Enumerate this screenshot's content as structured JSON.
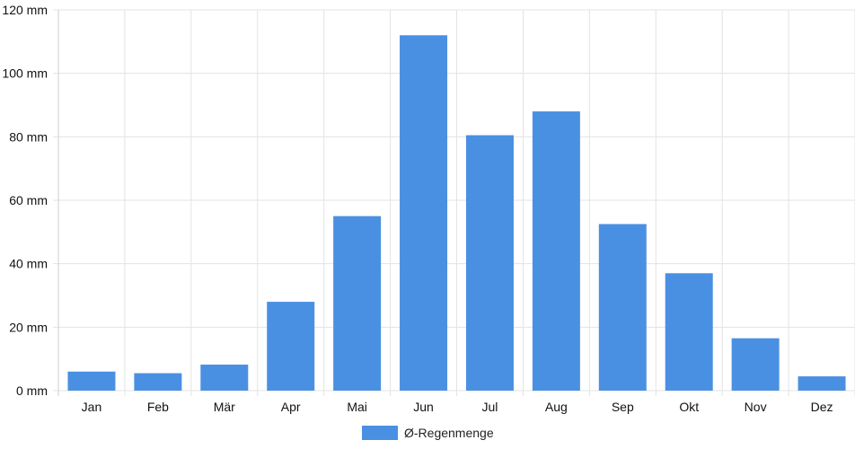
{
  "chart_data": {
    "type": "bar",
    "categories": [
      "Jan",
      "Feb",
      "Mär",
      "Apr",
      "Mai",
      "Jun",
      "Jul",
      "Aug",
      "Sep",
      "Okt",
      "Nov",
      "Dez"
    ],
    "series": [
      {
        "name": "Ø-Regenmenge",
        "values": [
          6,
          5.5,
          8.2,
          28,
          55,
          112,
          80.5,
          88,
          52.5,
          37,
          16.5,
          4.5
        ],
        "color": "#4a90e2"
      }
    ],
    "yticks": [
      "0 mm",
      "20 mm",
      "40 mm",
      "60 mm",
      "80 mm",
      "100 mm",
      "120 mm"
    ],
    "ylim": [
      0,
      120
    ],
    "grid": true,
    "legend": {
      "position": "bottom",
      "label": "Ø-Regenmenge"
    }
  }
}
